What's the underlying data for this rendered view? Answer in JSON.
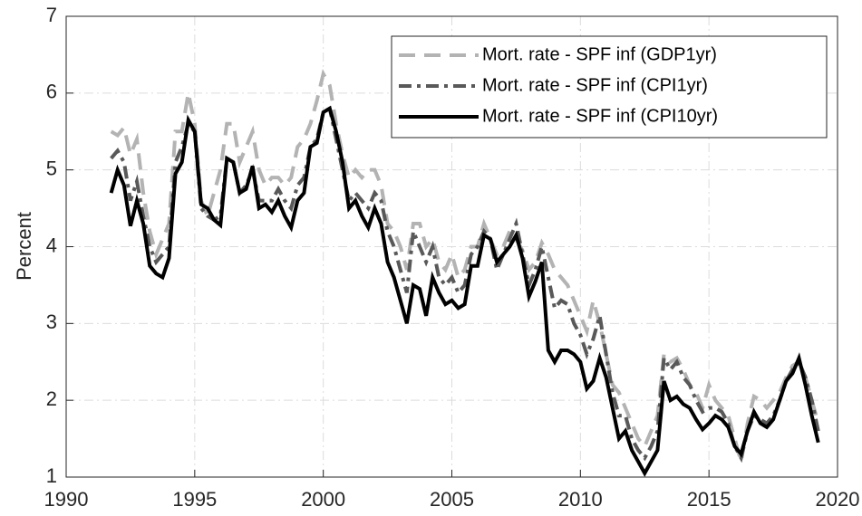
{
  "chart_data": {
    "type": "line",
    "ylabel": "Percent",
    "xlim": [
      1990,
      2020
    ],
    "xticks": [
      1990,
      1995,
      2000,
      2005,
      2010,
      2015,
      2020
    ],
    "ylim": [
      1,
      7
    ],
    "yticks": [
      1,
      2,
      3,
      4,
      5,
      6,
      7
    ],
    "grid": true,
    "legend": "upper right",
    "x": [
      1991.75,
      1992,
      1992.25,
      1992.5,
      1992.75,
      1993,
      1993.25,
      1993.5,
      1993.75,
      1994,
      1994.25,
      1994.5,
      1994.75,
      1995,
      1995.25,
      1995.5,
      1995.75,
      1996,
      1996.25,
      1996.5,
      1996.75,
      1997,
      1997.25,
      1997.5,
      1997.75,
      1998,
      1998.25,
      1998.5,
      1998.75,
      1999,
      1999.25,
      1999.5,
      1999.75,
      2000,
      2000.25,
      2000.5,
      2000.75,
      2001,
      2001.25,
      2001.5,
      2001.75,
      2002,
      2002.25,
      2002.5,
      2002.75,
      2003,
      2003.25,
      2003.5,
      2003.75,
      2004,
      2004.25,
      2004.5,
      2004.75,
      2005,
      2005.25,
      2005.5,
      2005.75,
      2006,
      2006.25,
      2006.5,
      2006.75,
      2007,
      2007.25,
      2007.5,
      2007.75,
      2008,
      2008.25,
      2008.5,
      2008.75,
      2009,
      2009.25,
      2009.5,
      2009.75,
      2010,
      2010.25,
      2010.5,
      2010.75,
      2011,
      2011.25,
      2011.5,
      2011.75,
      2012,
      2012.25,
      2012.5,
      2012.75,
      2013,
      2013.25,
      2013.5,
      2013.75,
      2014,
      2014.25,
      2014.5,
      2014.75,
      2015,
      2015.25,
      2015.5,
      2015.75,
      2016,
      2016.25,
      2016.5,
      2016.75,
      2017,
      2017.25,
      2017.5,
      2017.75,
      2018,
      2018.25,
      2018.5,
      2018.75,
      2019,
      2019.25
    ],
    "series": [
      {
        "name": "Mort. rate - SPF inf (GDP1yr)",
        "color": "#b3b3b3",
        "dash": "dashed",
        "values": [
          5.5,
          5.45,
          5.55,
          5.2,
          5.4,
          4.7,
          4.2,
          3.9,
          4.1,
          4.3,
          5.5,
          5.5,
          6.0,
          5.6,
          4.6,
          4.4,
          4.7,
          5.0,
          5.6,
          5.6,
          5.1,
          5.3,
          5.5,
          5.0,
          4.8,
          4.9,
          4.9,
          4.8,
          4.9,
          5.3,
          5.4,
          5.6,
          5.9,
          6.25,
          6.1,
          5.6,
          5.2,
          4.9,
          5.0,
          4.9,
          5.0,
          5.0,
          4.8,
          4.3,
          4.2,
          4.0,
          3.7,
          4.3,
          4.3,
          4.0,
          4.1,
          3.8,
          3.7,
          3.9,
          3.6,
          3.7,
          4.0,
          4.0,
          4.3,
          4.1,
          3.9,
          4.0,
          4.2,
          4.1,
          3.95,
          3.7,
          3.8,
          4.05,
          3.9,
          3.7,
          3.6,
          3.5,
          3.3,
          3.1,
          2.9,
          3.3,
          3.0,
          2.6,
          2.2,
          2.1,
          1.9,
          1.7,
          1.5,
          1.4,
          1.6,
          1.8,
          2.6,
          2.5,
          2.55,
          2.4,
          2.2,
          2.1,
          1.9,
          2.2,
          2.0,
          1.9,
          1.8,
          1.5,
          1.2,
          1.7,
          2.05,
          2.0,
          1.9,
          2.0,
          2.1,
          2.3,
          2.45,
          2.5,
          2.3,
          2.0,
          1.7
        ]
      },
      {
        "name": "Mort. rate - SPF inf (CPI1yr)",
        "color": "#595959",
        "dash": "dashdot",
        "values": [
          5.15,
          5.25,
          5.1,
          4.6,
          4.85,
          4.4,
          4.0,
          3.8,
          3.9,
          4.0,
          5.1,
          5.3,
          5.6,
          5.5,
          4.5,
          4.4,
          4.35,
          4.4,
          5.15,
          5.1,
          4.7,
          4.8,
          5.0,
          4.6,
          4.6,
          4.6,
          4.75,
          4.6,
          4.5,
          4.8,
          4.9,
          5.3,
          5.4,
          5.75,
          5.8,
          5.4,
          5.0,
          4.6,
          4.7,
          4.6,
          4.5,
          4.7,
          4.6,
          4.2,
          4.0,
          3.7,
          3.4,
          4.2,
          4.0,
          3.8,
          4.0,
          3.6,
          3.5,
          3.6,
          3.4,
          3.5,
          3.9,
          4.0,
          4.2,
          4.1,
          3.7,
          3.9,
          4.1,
          4.3,
          3.9,
          3.5,
          3.7,
          4.0,
          3.6,
          3.2,
          3.3,
          3.25,
          3.0,
          2.85,
          2.6,
          2.8,
          3.1,
          2.6,
          2.1,
          1.8,
          1.8,
          1.5,
          1.35,
          1.25,
          1.4,
          1.6,
          2.55,
          2.4,
          2.5,
          2.3,
          2.2,
          2.0,
          1.85,
          1.9,
          1.9,
          1.85,
          1.7,
          1.4,
          1.25,
          1.6,
          1.8,
          1.75,
          1.7,
          1.8,
          2.0,
          2.25,
          2.4,
          2.5,
          2.3,
          2.0,
          1.6
        ]
      },
      {
        "name": "Mort. rate - SPF inf (CPI10yr)",
        "color": "#000000",
        "dash": "solid",
        "values": [
          4.7,
          5.0,
          4.8,
          4.27,
          4.6,
          4.3,
          3.75,
          3.65,
          3.6,
          3.85,
          4.95,
          5.1,
          5.65,
          5.5,
          4.55,
          4.5,
          4.35,
          4.28,
          5.15,
          5.1,
          4.7,
          4.75,
          5.05,
          4.5,
          4.55,
          4.45,
          4.6,
          4.4,
          4.25,
          4.6,
          4.7,
          5.3,
          5.35,
          5.75,
          5.8,
          5.5,
          5.1,
          4.5,
          4.6,
          4.4,
          4.25,
          4.5,
          4.3,
          3.8,
          3.6,
          3.3,
          3.0,
          3.5,
          3.45,
          3.1,
          3.6,
          3.4,
          3.25,
          3.3,
          3.2,
          3.25,
          3.75,
          3.75,
          4.15,
          4.1,
          3.8,
          3.9,
          4.0,
          4.15,
          3.85,
          3.35,
          3.55,
          3.8,
          2.65,
          2.5,
          2.65,
          2.65,
          2.6,
          2.5,
          2.15,
          2.25,
          2.55,
          2.3,
          1.9,
          1.5,
          1.6,
          1.35,
          1.2,
          1.05,
          1.2,
          1.35,
          2.25,
          2.0,
          2.05,
          1.95,
          1.9,
          1.75,
          1.62,
          1.7,
          1.8,
          1.75,
          1.65,
          1.4,
          1.3,
          1.6,
          1.85,
          1.7,
          1.65,
          1.75,
          2.0,
          2.25,
          2.35,
          2.55,
          2.2,
          1.8,
          1.45
        ]
      }
    ]
  }
}
